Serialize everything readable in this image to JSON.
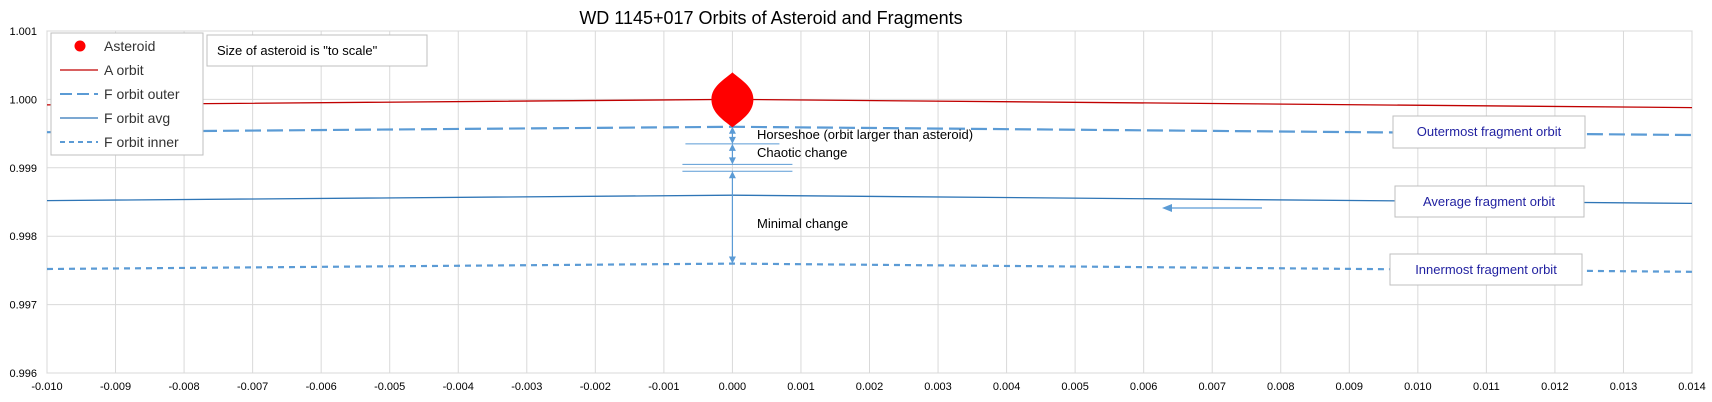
{
  "chart_data": {
    "type": "line",
    "title": "WD 1145+017 Orbits of Asteroid and Fragments",
    "xlabel": "",
    "ylabel": "",
    "xlim": [
      -0.01,
      0.014
    ],
    "ylim": [
      0.996,
      1.001
    ],
    "x_ticks": [
      "-0.010",
      "-0.009",
      "-0.008",
      "-0.007",
      "-0.006",
      "-0.005",
      "-0.004",
      "-0.003",
      "-0.002",
      "-0.001",
      "0.000",
      "0.001",
      "0.002",
      "0.003",
      "0.004",
      "0.005",
      "0.006",
      "0.007",
      "0.008",
      "0.009",
      "0.010",
      "0.011",
      "0.012",
      "0.013",
      "0.014"
    ],
    "y_ticks": [
      "0.996",
      "0.997",
      "0.998",
      "0.999",
      "1.000",
      "1.001"
    ],
    "grid": true,
    "legend_position": "top-left",
    "legend": [
      {
        "label": "Asteroid",
        "style": "marker",
        "color": "#ff0000"
      },
      {
        "label": "A orbit",
        "style": "solid-thin",
        "color": "#c00000"
      },
      {
        "label": "F orbit outer",
        "style": "long-dash",
        "color": "#5b9bd5"
      },
      {
        "label": "F orbit avg",
        "style": "solid",
        "color": "#2e75b6"
      },
      {
        "label": "F orbit inner",
        "style": "short-dash",
        "color": "#5b9bd5"
      }
    ],
    "asteroid": {
      "x": 0.0,
      "y": 1.0
    },
    "series": [
      {
        "name": "A orbit",
        "color": "#c00000",
        "dash": "none",
        "x": [
          -0.01,
          0.0,
          0.014
        ],
        "y": [
          0.99992,
          1.0,
          0.99988
        ]
      },
      {
        "name": "F orbit outer",
        "color": "#5b9bd5",
        "dash": "long",
        "x": [
          -0.01,
          0.0,
          0.014
        ],
        "y": [
          0.99952,
          0.9996,
          0.99948
        ]
      },
      {
        "name": "F orbit avg",
        "color": "#2e75b6",
        "dash": "none",
        "x": [
          -0.01,
          0.0,
          0.014
        ],
        "y": [
          0.99852,
          0.9986,
          0.99848
        ]
      },
      {
        "name": "F orbit inner",
        "color": "#5b9bd5",
        "dash": "short",
        "x": [
          -0.01,
          0.0,
          0.014
        ],
        "y": [
          0.99752,
          0.9976,
          0.99748
        ]
      }
    ],
    "annotations": {
      "scale_note": "Size of asteroid is \"to scale\"",
      "horseshoe": "Horseshoe (orbit larger than asteroid)",
      "chaotic": "Chaotic change",
      "minimal": "Minimal change",
      "outermost": "Outermost fragment orbit",
      "average": "Average fragment orbit",
      "innermost": "Innermost fragment orbit"
    }
  }
}
